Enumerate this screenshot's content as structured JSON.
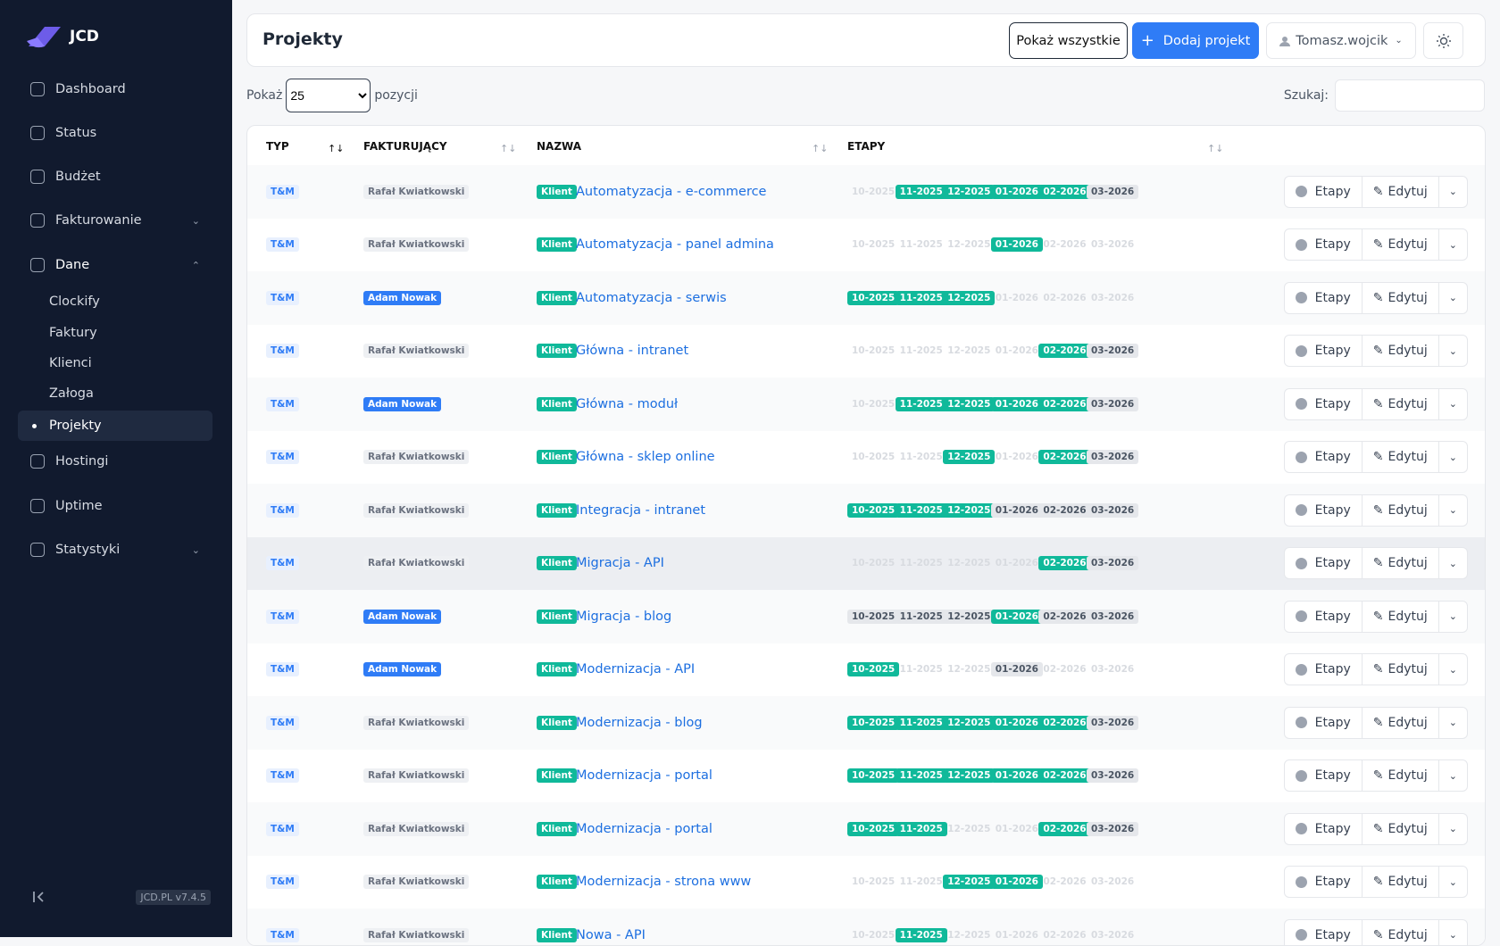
{
  "sidebar": {
    "logo": "JCD",
    "nav": [
      {
        "label": "Dashboard"
      },
      {
        "label": "Status"
      },
      {
        "label": "Budżet"
      },
      {
        "label": "Fakturowanie",
        "expandable": true
      },
      {
        "label": "Dane",
        "expandable": true,
        "open": true,
        "children": [
          {
            "label": "Clockify"
          },
          {
            "label": "Faktury"
          },
          {
            "label": "Klienci"
          },
          {
            "label": "Załoga"
          },
          {
            "label": "Projekty",
            "active": true
          }
        ]
      },
      {
        "label": "Hostingi"
      },
      {
        "label": "Uptime"
      },
      {
        "label": "Statystyki",
        "expandable": true
      }
    ],
    "version": "JCD.PL v7.4.5"
  },
  "header": {
    "title": "Projekty",
    "buttons": [
      "Pokaż wszystkie",
      "Dodaj projekt"
    ],
    "user": "Tomasz.wojcik"
  },
  "controls": {
    "show_label": "Pokaż",
    "page_size": 25,
    "entries_label": "pozycji",
    "search_label": "Szukaj:"
  },
  "table": {
    "columns": [
      "TYP",
      "FAKTURUJĄCY",
      "NAZWA",
      "ETAPY"
    ],
    "stages": [
      "10-2025",
      "11-2025",
      "12-2025",
      "01-2026",
      "02-2026",
      "03-2026"
    ],
    "client_badge": "Klient",
    "actions": [
      "Etapy",
      "Edytuj"
    ],
    "rows": [
      {
        "type": "T&M",
        "biller": "Rafał Kwiatkowski",
        "biller_badge": "gray",
        "name": "Automatyzacja - e-commerce",
        "stages": "mggggs"
      },
      {
        "type": "T&M",
        "biller": "Rafał Kwiatkowski",
        "biller_badge": "gray",
        "name": "Automatyzacja - panel admina",
        "stages": "mmmgmm"
      },
      {
        "type": "T&M",
        "biller": "Adam Nowak",
        "biller_badge": "blue",
        "name": "Automatyzacja - serwis",
        "stages": "gggmmm"
      },
      {
        "type": "T&M",
        "biller": "Rafał Kwiatkowski",
        "biller_badge": "gray",
        "name": "Główna - intranet",
        "stages": "mmmmgs"
      },
      {
        "type": "T&M",
        "biller": "Adam Nowak",
        "biller_badge": "blue",
        "name": "Główna - moduł",
        "stages": "mggggs"
      },
      {
        "type": "T&M",
        "biller": "Rafał Kwiatkowski",
        "biller_badge": "gray",
        "name": "Główna - sklep online",
        "stages": "mmgmgs"
      },
      {
        "type": "T&M",
        "biller": "Rafał Kwiatkowski",
        "biller_badge": "gray",
        "name": "Integracja - intranet",
        "stages": "gggsss"
      },
      {
        "type": "T&M",
        "biller": "Rafał Kwiatkowski",
        "biller_badge": "gray",
        "name": "Migracja - API",
        "stages": "mmmmgs",
        "hovered": true
      },
      {
        "type": "T&M",
        "biller": "Adam Nowak",
        "biller_badge": "blue",
        "name": "Migracja - blog",
        "stages": "sssgss"
      },
      {
        "type": "T&M",
        "biller": "Adam Nowak",
        "biller_badge": "blue",
        "name": "Modernizacja - API",
        "stages": "gmmsmm"
      },
      {
        "type": "T&M",
        "biller": "Rafał Kwiatkowski",
        "biller_badge": "gray",
        "name": "Modernizacja - blog",
        "stages": "gggggs"
      },
      {
        "type": "T&M",
        "biller": "Rafał Kwiatkowski",
        "biller_badge": "gray",
        "name": "Modernizacja - portal",
        "stages": "gggggs"
      },
      {
        "type": "T&M",
        "biller": "Rafał Kwiatkowski",
        "biller_badge": "gray",
        "name": "Modernizacja - portal",
        "stages": "ggmmgs"
      },
      {
        "type": "T&M",
        "biller": "Rafał Kwiatkowski",
        "biller_badge": "gray",
        "name": "Modernizacja - strona www",
        "stages": "mmggmm"
      },
      {
        "type": "T&M",
        "biller": "Rafał Kwiatkowski",
        "biller_badge": "gray",
        "name": "Nowa - API",
        "stages": "mgmmmm"
      }
    ]
  }
}
